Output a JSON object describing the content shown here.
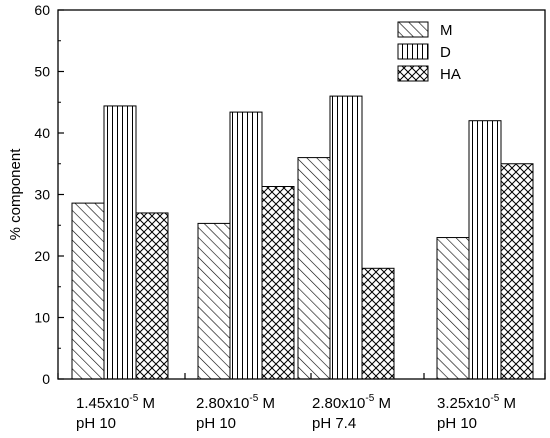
{
  "chart_data": {
    "type": "bar",
    "ylabel": "% component",
    "xlabel": "",
    "ylim": [
      0,
      60
    ],
    "yticks": [
      0,
      10,
      20,
      30,
      40,
      50,
      60
    ],
    "grid": false,
    "legend_position": "top-right",
    "categories": [
      {
        "conc_base": "1.45x10",
        "conc_exp": "-5",
        "conc_unit": " M",
        "ph": "pH 10"
      },
      {
        "conc_base": "2.80x10",
        "conc_exp": "-5",
        "conc_unit": " M",
        "ph": "pH 10"
      },
      {
        "conc_base": "2.80x10",
        "conc_exp": "-5",
        "conc_unit": " M",
        "ph": "pH 7.4"
      },
      {
        "conc_base": "3.25x10",
        "conc_exp": "-5",
        "conc_unit": " M",
        "ph": "pH 10"
      }
    ],
    "series": [
      {
        "name": "M",
        "pattern": "diagonal-hatch",
        "values": [
          28.6,
          25.3,
          36.0,
          23.0
        ]
      },
      {
        "name": "D",
        "pattern": "vertical-lines",
        "values": [
          44.4,
          43.4,
          46.0,
          42.0
        ]
      },
      {
        "name": "HA",
        "pattern": "crosshatch",
        "values": [
          27.0,
          31.3,
          18.0,
          35.0
        ]
      }
    ]
  }
}
